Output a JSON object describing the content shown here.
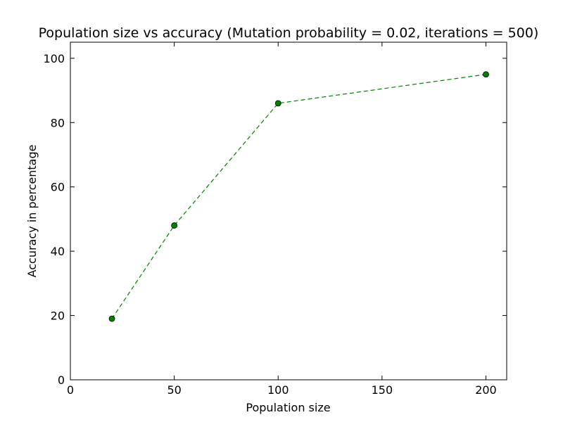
{
  "chart_data": {
    "type": "line",
    "title": "Population size vs accuracy (Mutation probability = 0.02, iterations = 500)",
    "xlabel": "Population size",
    "ylabel": "Accuracy in percentage",
    "xlim": [
      0,
      210
    ],
    "ylim": [
      0,
      105
    ],
    "xticks": [
      0,
      50,
      100,
      150,
      200
    ],
    "yticks": [
      0,
      20,
      40,
      60,
      80,
      100
    ],
    "xtick_labels": [
      "0",
      "50",
      "100",
      "150",
      "200"
    ],
    "ytick_labels": [
      "0",
      "20",
      "40",
      "60",
      "80",
      "100"
    ],
    "grid": false,
    "legend": "none",
    "series": [
      {
        "x": [
          20,
          50,
          100,
          200
        ],
        "y": [
          19,
          48,
          86,
          95
        ],
        "line_style": "dashed",
        "marker": "circle",
        "color": "#008000"
      }
    ]
  }
}
